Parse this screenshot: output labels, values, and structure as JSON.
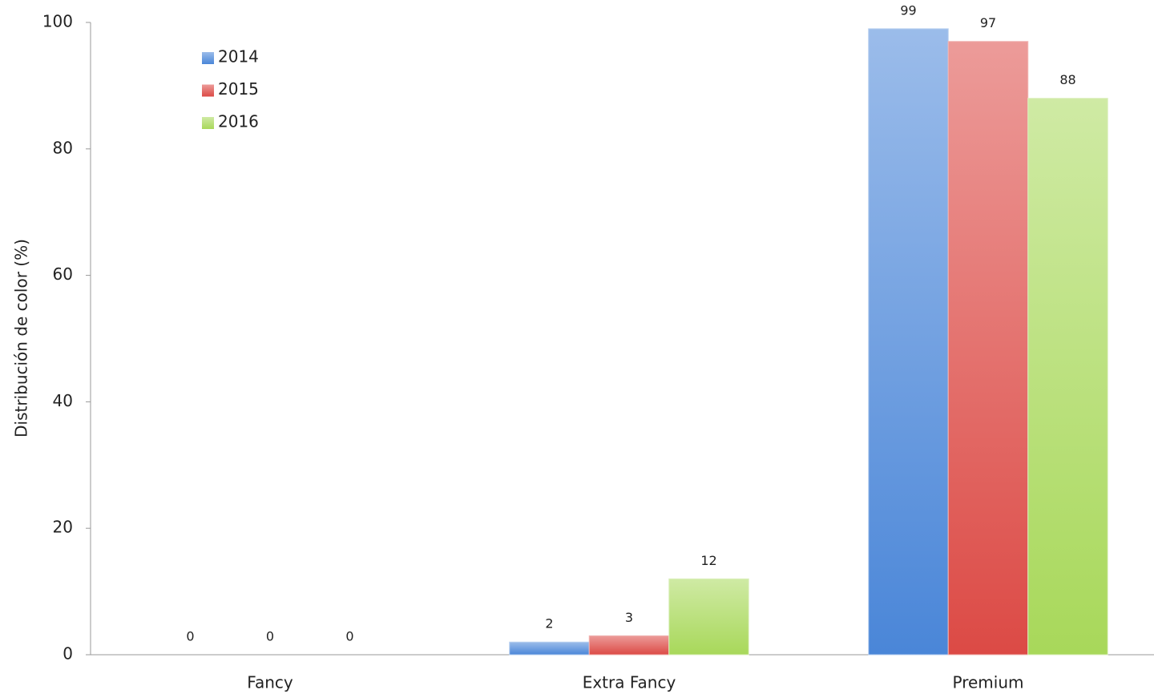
{
  "chart_data": {
    "type": "bar",
    "y_label": "Distribución de color (%)",
    "categories": [
      "Fancy",
      "Extra Fancy",
      "Premium"
    ],
    "series": [
      {
        "name": "2014",
        "color": "#4a86d8",
        "values": [
          0,
          2,
          99
        ]
      },
      {
        "name": "2015",
        "color": "#dc4a45",
        "values": [
          0,
          3,
          97
        ]
      },
      {
        "name": "2016",
        "color": "#a8d85a",
        "values": [
          0,
          12,
          88
        ]
      }
    ],
    "ylim": [
      0,
      100
    ],
    "yticks": [
      0,
      20,
      40,
      60,
      80,
      100
    ],
    "legend": "top-left",
    "grid": false
  }
}
